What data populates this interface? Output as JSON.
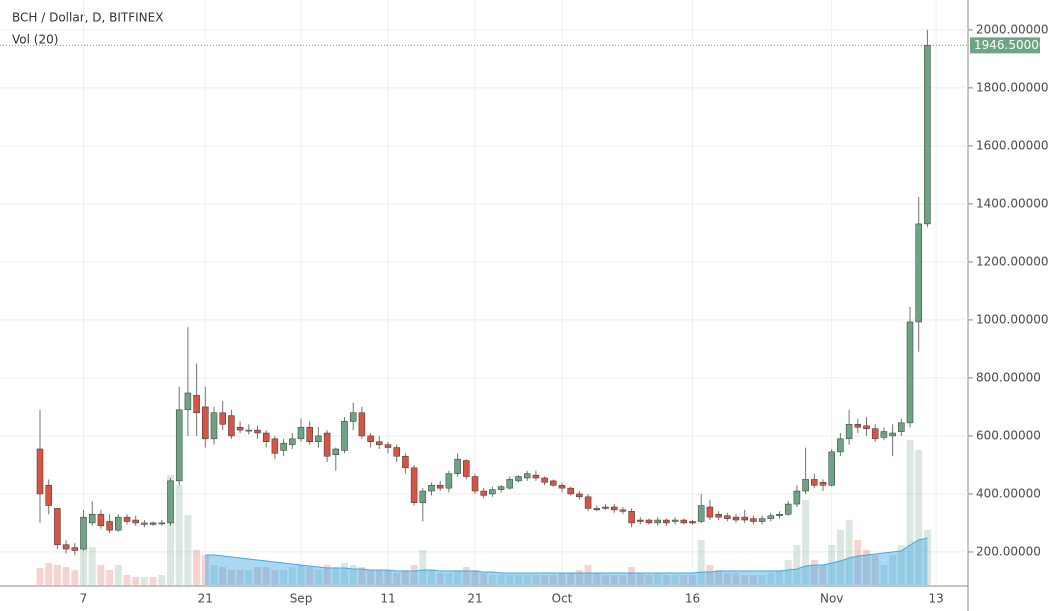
{
  "chart_data": {
    "type": "candlestick",
    "title": "BCH / Dollar, D, BITFINEX",
    "indicator": "Vol (20)",
    "categories": [
      null,
      null,
      null,
      null,
      null,
      "7",
      null,
      null,
      null,
      null,
      null,
      null,
      null,
      null,
      null,
      null,
      null,
      null,
      null,
      "21",
      null,
      null,
      null,
      null,
      null,
      null,
      null,
      null,
      null,
      null,
      "Sep",
      null,
      null,
      null,
      null,
      null,
      null,
      null,
      null,
      null,
      "11",
      null,
      null,
      null,
      null,
      null,
      null,
      null,
      null,
      null,
      "21",
      null,
      null,
      null,
      null,
      null,
      null,
      null,
      null,
      null,
      "Oct",
      null,
      null,
      null,
      null,
      null,
      null,
      null,
      null,
      null,
      null,
      null,
      null,
      null,
      null,
      "16",
      null,
      null,
      null,
      null,
      null,
      null,
      null,
      null,
      null,
      null,
      null,
      null,
      null,
      null,
      null,
      "Nov",
      null,
      null,
      null,
      null,
      null,
      null,
      null,
      null,
      null,
      null,
      null,
      "13"
    ],
    "open": [
      555,
      430,
      350,
      225,
      215,
      210,
      300,
      330,
      305,
      275,
      320,
      310,
      295,
      300,
      300,
      300,
      445,
      690,
      740,
      700,
      590,
      680,
      670,
      630,
      620,
      620,
      610,
      590,
      550,
      570,
      590,
      630,
      580,
      610,
      535,
      550,
      650,
      680,
      600,
      580,
      570,
      560,
      530,
      490,
      370,
      410,
      430,
      420,
      470,
      515,
      460,
      410,
      400,
      415,
      420,
      445,
      455,
      465,
      455,
      445,
      430,
      420,
      400,
      390,
      350,
      355,
      355,
      345,
      340,
      310,
      310,
      300,
      310,
      305,
      310,
      305,
      305,
      355,
      330,
      325,
      320,
      320,
      315,
      305,
      315,
      325,
      330,
      365,
      410,
      450,
      440,
      430,
      545,
      590,
      640,
      635,
      625,
      595,
      600,
      615,
      645,
      993,
      1331,
      null
    ],
    "high": [
      690,
      450,
      345,
      240,
      230,
      345,
      375,
      345,
      330,
      330,
      330,
      325,
      310,
      305,
      310,
      455,
      770,
      975,
      850,
      770,
      700,
      720,
      690,
      650,
      640,
      635,
      620,
      600,
      590,
      610,
      660,
      650,
      630,
      620,
      560,
      665,
      715,
      700,
      610,
      600,
      580,
      570,
      540,
      500,
      420,
      440,
      445,
      480,
      540,
      520,
      470,
      420,
      425,
      430,
      460,
      465,
      480,
      480,
      460,
      450,
      440,
      425,
      410,
      400,
      360,
      365,
      365,
      355,
      350,
      320,
      315,
      320,
      315,
      320,
      315,
      310,
      400,
      380,
      340,
      335,
      330,
      345,
      325,
      325,
      335,
      340,
      375,
      430,
      560,
      470,
      450,
      555,
      610,
      690,
      660,
      665,
      640,
      630,
      640,
      660,
      1045,
      1424,
      2000,
      null
    ],
    "low": [
      300,
      330,
      210,
      195,
      190,
      205,
      290,
      280,
      265,
      270,
      295,
      290,
      285,
      290,
      290,
      290,
      430,
      600,
      600,
      560,
      570,
      620,
      590,
      610,
      605,
      590,
      560,
      520,
      530,
      555,
      580,
      570,
      560,
      510,
      480,
      540,
      620,
      590,
      560,
      555,
      540,
      510,
      470,
      360,
      305,
      395,
      410,
      405,
      460,
      450,
      400,
      385,
      390,
      405,
      415,
      440,
      445,
      445,
      430,
      425,
      405,
      395,
      380,
      340,
      340,
      345,
      335,
      330,
      285,
      295,
      295,
      290,
      290,
      295,
      295,
      295,
      300,
      310,
      310,
      305,
      300,
      300,
      295,
      295,
      305,
      315,
      325,
      355,
      400,
      420,
      410,
      425,
      530,
      570,
      610,
      600,
      580,
      585,
      530,
      600,
      630,
      890,
      1320,
      null
    ],
    "close": [
      400,
      360,
      225,
      210,
      205,
      320,
      330,
      290,
      275,
      320,
      305,
      300,
      300,
      295,
      300,
      445,
      690,
      748,
      680,
      590,
      680,
      640,
      600,
      620,
      620,
      610,
      580,
      540,
      575,
      590,
      630,
      580,
      600,
      530,
      555,
      650,
      680,
      600,
      580,
      570,
      560,
      530,
      490,
      370,
      410,
      430,
      420,
      470,
      520,
      460,
      410,
      395,
      415,
      425,
      450,
      460,
      470,
      455,
      440,
      430,
      420,
      400,
      390,
      350,
      345,
      350,
      345,
      340,
      300,
      305,
      300,
      310,
      300,
      310,
      300,
      300,
      360,
      320,
      320,
      315,
      310,
      310,
      305,
      315,
      325,
      330,
      365,
      410,
      450,
      430,
      430,
      545,
      590,
      640,
      630,
      625,
      590,
      615,
      610,
      645,
      993,
      1331,
      1946.5,
      null
    ],
    "up_color": "#6ba583",
    "down_color": "#d75442",
    "wick_color": "#737375",
    "ylim": [
      86,
      2103
    ],
    "yticks": [
      {
        "value": 200,
        "label": "200.00000"
      },
      {
        "value": 400,
        "label": "400.00000"
      },
      {
        "value": 600,
        "label": "600.00000"
      },
      {
        "value": 800,
        "label": "800.00000"
      },
      {
        "value": 1000,
        "label": "1000.00000"
      },
      {
        "value": 1200,
        "label": "1200.00000"
      },
      {
        "value": 1400,
        "label": "1400.00000"
      },
      {
        "value": 1600,
        "label": "1600.00000"
      },
      {
        "value": 1800,
        "label": "1800.00000"
      },
      {
        "value": 2000,
        "label": "2000.00000"
      }
    ],
    "last_price": {
      "value": 1946.5,
      "label": "1946.50000"
    },
    "grid": true,
    "volume": {
      "ylim": [
        0,
        400
      ],
      "ma_color": "#3fa9e6",
      "values": [
        17,
        22,
        20,
        18,
        15,
        38,
        38,
        20,
        15,
        20,
        10,
        8,
        8,
        8,
        10,
        110,
        100,
        70,
        35,
        30,
        20,
        18,
        15,
        15,
        15,
        18,
        18,
        15,
        15,
        18,
        20,
        18,
        15,
        20,
        18,
        22,
        20,
        18,
        15,
        15,
        15,
        12,
        15,
        20,
        35,
        15,
        12,
        12,
        15,
        18,
        15,
        12,
        10,
        10,
        10,
        10,
        10,
        10,
        10,
        10,
        12,
        12,
        15,
        20,
        12,
        10,
        10,
        10,
        18,
        12,
        10,
        12,
        10,
        10,
        10,
        10,
        45,
        20,
        15,
        12,
        12,
        10,
        10,
        10,
        12,
        15,
        25,
        40,
        85,
        25,
        20,
        40,
        55,
        65,
        45,
        35,
        30,
        20,
        30,
        40,
        145,
        135,
        55,
        null
      ],
      "ma": [
        null,
        null,
        null,
        null,
        null,
        null,
        null,
        null,
        null,
        null,
        null,
        null,
        null,
        null,
        null,
        null,
        null,
        null,
        null,
        30,
        30,
        29,
        28,
        27,
        26,
        25,
        24,
        23,
        22,
        21,
        20,
        19,
        18,
        17,
        17,
        17,
        16,
        16,
        15,
        15,
        15,
        14,
        14,
        14,
        15,
        15,
        14,
        14,
        14,
        14,
        14,
        13,
        13,
        12,
        12,
        12,
        12,
        12,
        12,
        12,
        12,
        12,
        12,
        12,
        12,
        12,
        12,
        12,
        12,
        12,
        12,
        12,
        12,
        12,
        12,
        12,
        13,
        13,
        14,
        14,
        14,
        14,
        14,
        14,
        14,
        14,
        15,
        16,
        19,
        20,
        20,
        22,
        24,
        27,
        29,
        30,
        31,
        32,
        33,
        34,
        40,
        45,
        47,
        null
      ]
    }
  }
}
